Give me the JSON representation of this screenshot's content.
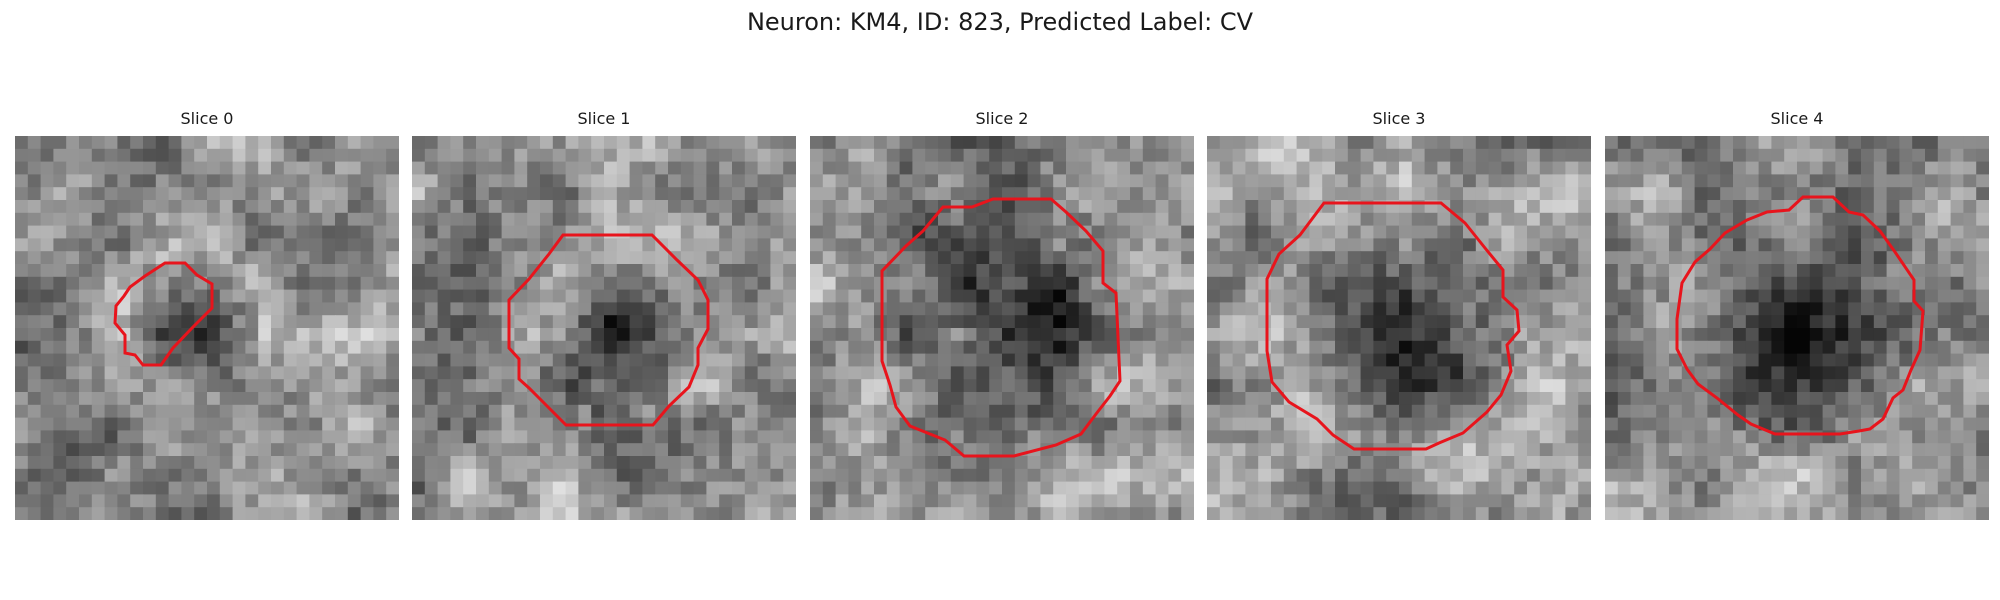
{
  "figure": {
    "title": "Neuron: KM4, ID: 823, Predicted Label: CV"
  },
  "colors": {
    "contour": "#e8141c",
    "background": "#ffffff"
  },
  "slices": [
    {
      "title": "Slice 0",
      "seed": 11,
      "dark_center": [
        0.47,
        0.47
      ],
      "dark_radius": 0.17
    },
    {
      "title": "Slice 1",
      "seed": 23,
      "dark_center": [
        0.53,
        0.53
      ],
      "dark_radius": 0.2
    },
    {
      "title": "Slice 2",
      "seed": 37,
      "dark_center": [
        0.5,
        0.45
      ],
      "dark_radius": 0.34
    },
    {
      "title": "Slice 3",
      "seed": 41,
      "dark_center": [
        0.5,
        0.5
      ],
      "dark_radius": 0.3
    },
    {
      "title": "Slice 4",
      "seed": 53,
      "dark_center": [
        0.5,
        0.52
      ],
      "dark_radius": 0.3
    }
  ]
}
